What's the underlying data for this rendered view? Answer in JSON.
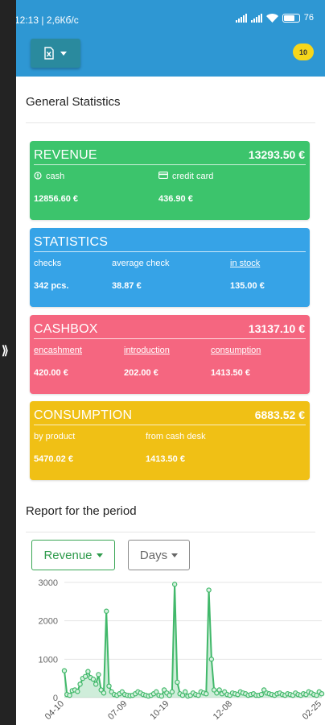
{
  "status_bar": {
    "time_speed": "12:13 | 2,6Кб/с",
    "battery": "76"
  },
  "toolbar": {
    "export_icon": "excel-file-icon",
    "notification_count": "10"
  },
  "general": {
    "title": "General Statistics"
  },
  "cards": {
    "revenue": {
      "title": "REVENUE",
      "total": "13293.50 €",
      "cash_label": "cash",
      "cash_value": "12856.60 €",
      "card_label": "credit card",
      "card_value": "436.90 €",
      "color": "#3cc46c"
    },
    "statistics": {
      "title": "STATISTICS",
      "checks_label": "checks",
      "checks_value": "342  pcs.",
      "avg_label": "average check",
      "avg_value": "38.87 €",
      "stock_label": "in stock",
      "stock_value": "135.00 €",
      "color": "#36a3e7"
    },
    "cashbox": {
      "title": "CASHBOX",
      "total": "13137.10 €",
      "enc_label": "encashment",
      "enc_value": "420.00 €",
      "intro_label": "introduction",
      "intro_value": "202.00 €",
      "cons_label": "consumption",
      "cons_value": "1413.50 €",
      "color": "#f56680"
    },
    "consumption": {
      "title": "CONSUMPTION",
      "total": "6883.52 €",
      "product_label": "by product",
      "product_value": "5470.02 €",
      "desk_label": "from cash desk",
      "desk_value": "1413.50 €",
      "color": "#f0c015"
    }
  },
  "report": {
    "title": "Report for the period",
    "metric_select": "Revenue",
    "period_select": "Days"
  },
  "chart_data": {
    "type": "line",
    "ylim": [
      0,
      3000
    ],
    "y_ticks": [
      "0",
      "1000",
      "2000",
      "3000"
    ],
    "x_tick_labels": [
      "04-10",
      "07-09",
      "10-19",
      "12-08",
      "02-25"
    ],
    "x_tick_index": [
      0,
      24,
      40,
      64,
      98
    ],
    "values": [
      700,
      80,
      60,
      180,
      200,
      160,
      350,
      500,
      550,
      680,
      520,
      480,
      350,
      600,
      200,
      120,
      2250,
      300,
      150,
      80,
      60,
      100,
      150,
      80,
      60,
      50,
      60,
      100,
      150,
      120,
      80,
      60,
      40,
      60,
      100,
      150,
      60,
      40,
      200,
      120,
      60,
      150,
      2950,
      400,
      100,
      60,
      150,
      40,
      60,
      120,
      80,
      60,
      150,
      120,
      100,
      2800,
      1000,
      200,
      120,
      200,
      100,
      150,
      80,
      60,
      120,
      100,
      80,
      150,
      120,
      100,
      60,
      80,
      100,
      60,
      60,
      80,
      200,
      120,
      100,
      80,
      60,
      100,
      120,
      80,
      60,
      100,
      80,
      60,
      120,
      80,
      60,
      100,
      80,
      150,
      120,
      80,
      60,
      150,
      100
    ],
    "series_color": "#41b86a",
    "grid": true
  }
}
